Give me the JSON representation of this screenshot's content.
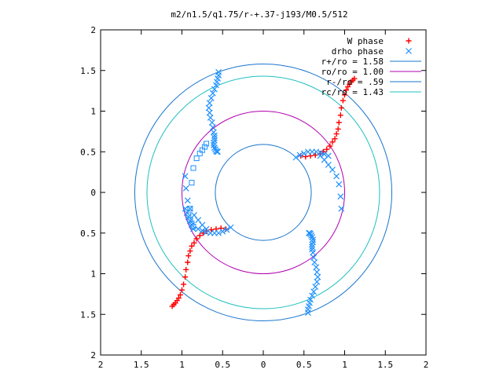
{
  "chart_data": {
    "type": "scatter",
    "title": "m2/n1.5/q1.75/r-+.37-j193/M0.5/512",
    "xlim": [
      -2,
      2
    ],
    "ylim": [
      -2,
      2
    ],
    "x_ticks": [
      -2,
      -1.5,
      -1,
      -0.5,
      0,
      0.5,
      1,
      1.5,
      2
    ],
    "y_ticks": [
      -2,
      -1.5,
      -1,
      -0.5,
      0,
      0.5,
      1,
      1.5,
      2
    ],
    "x_tick_labels": [
      "2",
      "1.5",
      "1",
      "0.5",
      "0",
      "0.5",
      "1",
      "1.5",
      "2"
    ],
    "y_tick_labels": [
      "2",
      "1.5",
      "1",
      "0.5",
      "0",
      "0.5",
      "1",
      "1.5",
      "2"
    ],
    "grid": false,
    "legend_position": "top-right",
    "point_series": [
      {
        "name": "W phase",
        "marker": "+",
        "color": "#ff0000",
        "x": [
          0.46,
          0.52,
          0.58,
          0.64,
          0.7,
          0.74,
          0.78,
          0.82,
          0.85,
          0.88,
          0.9,
          0.92,
          0.93,
          0.95,
          0.96,
          0.98,
          1.0,
          1.02,
          1.04,
          1.06,
          1.08,
          1.1,
          1.12,
          -0.46,
          -0.52,
          -0.58,
          -0.64,
          -0.7,
          -0.74,
          -0.78,
          -0.82,
          -0.85,
          -0.88,
          -0.9,
          -0.92,
          -0.93,
          -0.95,
          -0.96,
          -0.98,
          -1.0,
          -1.02,
          -1.04,
          -1.06,
          -1.08,
          -1.1,
          -1.12
        ],
        "y": [
          0.45,
          0.44,
          0.45,
          0.46,
          0.48,
          0.5,
          0.53,
          0.57,
          0.62,
          0.66,
          0.72,
          0.78,
          0.86,
          0.95,
          1.04,
          1.13,
          1.2,
          1.26,
          1.3,
          1.33,
          1.36,
          1.38,
          1.4,
          -0.45,
          -0.44,
          -0.45,
          -0.46,
          -0.48,
          -0.5,
          -0.53,
          -0.57,
          -0.62,
          -0.66,
          -0.72,
          -0.78,
          -0.86,
          -0.95,
          -1.04,
          -1.13,
          -1.2,
          -1.26,
          -1.3,
          -1.33,
          -1.36,
          -1.38,
          -1.4
        ]
      },
      {
        "name": "drho phase",
        "marker": "x",
        "color": "#1e90ff",
        "x": [
          -0.55,
          -0.55,
          -0.56,
          -0.57,
          -0.58,
          -0.6,
          -0.62,
          -0.64,
          -0.66,
          -0.67,
          -0.66,
          -0.65,
          -0.63,
          -0.62,
          -0.61,
          -0.6,
          -0.6,
          -0.6,
          -0.61,
          -0.61,
          -0.6,
          -0.59,
          -0.58,
          -0.57,
          -0.56,
          0.55,
          0.55,
          0.56,
          0.57,
          0.58,
          0.6,
          0.62,
          0.64,
          0.66,
          0.67,
          0.66,
          0.65,
          0.63,
          0.62,
          0.61,
          0.6,
          0.6,
          0.6,
          0.61,
          0.61,
          0.6,
          0.59,
          0.58,
          0.57,
          0.56,
          0.4,
          0.45,
          0.5,
          0.55,
          0.6,
          0.65,
          0.7,
          0.75,
          0.8,
          -0.4,
          -0.45,
          -0.5,
          -0.55,
          -0.6,
          -0.65,
          -0.7,
          -0.75,
          -0.8,
          -0.86,
          -0.88,
          -0.9,
          -0.92,
          -0.94,
          -0.96,
          0.7,
          0.75,
          0.8,
          0.85,
          0.9,
          0.93,
          0.95,
          0.96,
          -0.7,
          -0.75,
          -0.8,
          -0.85,
          -0.9,
          -0.93,
          -0.95,
          -0.96
        ],
        "y": [
          1.48,
          1.44,
          1.4,
          1.36,
          1.32,
          1.27,
          1.22,
          1.16,
          1.1,
          1.04,
          0.98,
          0.92,
          0.86,
          0.8,
          0.74,
          0.7,
          0.67,
          0.64,
          0.61,
          0.58,
          0.55,
          0.53,
          0.51,
          0.5,
          0.5,
          -1.48,
          -1.44,
          -1.4,
          -1.36,
          -1.32,
          -1.27,
          -1.22,
          -1.16,
          -1.1,
          -1.04,
          -0.98,
          -0.92,
          -0.86,
          -0.8,
          -0.74,
          -0.7,
          -0.67,
          -0.64,
          -0.61,
          -0.58,
          -0.55,
          -0.53,
          -0.51,
          -0.5,
          -0.5,
          0.43,
          0.46,
          0.48,
          0.5,
          0.5,
          0.5,
          0.49,
          0.47,
          0.45,
          -0.43,
          -0.46,
          -0.48,
          -0.5,
          -0.5,
          -0.5,
          -0.49,
          -0.47,
          -0.45,
          -0.45,
          -0.4,
          -0.35,
          -0.3,
          -0.25,
          -0.2,
          0.45,
          0.4,
          0.34,
          0.28,
          0.2,
          0.1,
          -0.05,
          -0.2,
          -0.45,
          -0.4,
          -0.34,
          -0.28,
          -0.2,
          -0.1,
          0.05,
          0.2
        ]
      },
      {
        "name": "drho phase (open squares)",
        "marker": "square",
        "color": "#1e90ff",
        "x": [
          -0.7,
          -0.72,
          -0.75,
          -0.78,
          -0.82,
          -0.86,
          -0.88,
          -0.9,
          -0.92,
          -0.9,
          -0.88,
          -0.86
        ],
        "y": [
          0.6,
          0.56,
          0.52,
          0.48,
          0.42,
          0.3,
          0.12,
          -0.2,
          -0.28,
          -0.34,
          -0.38,
          -0.42
        ]
      }
    ],
    "circles": [
      {
        "name": "r+/ro = 1.58",
        "radius": 1.58,
        "color": "#1874cd"
      },
      {
        "name": "ro/ro = 1.00",
        "radius": 1.0,
        "color": "#b000b0"
      },
      {
        "name": "r-/ro = .59",
        "radius": 0.59,
        "color": "#1874cd"
      },
      {
        "name": "rc/ro = 1.43",
        "radius": 1.43,
        "color": "#20c0c0"
      }
    ],
    "legend": [
      {
        "label": "W phase",
        "symbol": "+",
        "color": "#ff0000"
      },
      {
        "label": "drho phase",
        "symbol": "x",
        "color": "#1e90ff"
      },
      {
        "label": "r+/ro = 1.58",
        "symbol": "line",
        "color": "#1874cd"
      },
      {
        "label": "ro/ro = 1.00",
        "symbol": "line",
        "color": "#b000b0"
      },
      {
        "label": "r-/ro = .59",
        "symbol": "line",
        "color": "#1874cd"
      },
      {
        "label": "rc/ro = 1.43",
        "symbol": "line",
        "color": "#20c0c0"
      }
    ]
  }
}
